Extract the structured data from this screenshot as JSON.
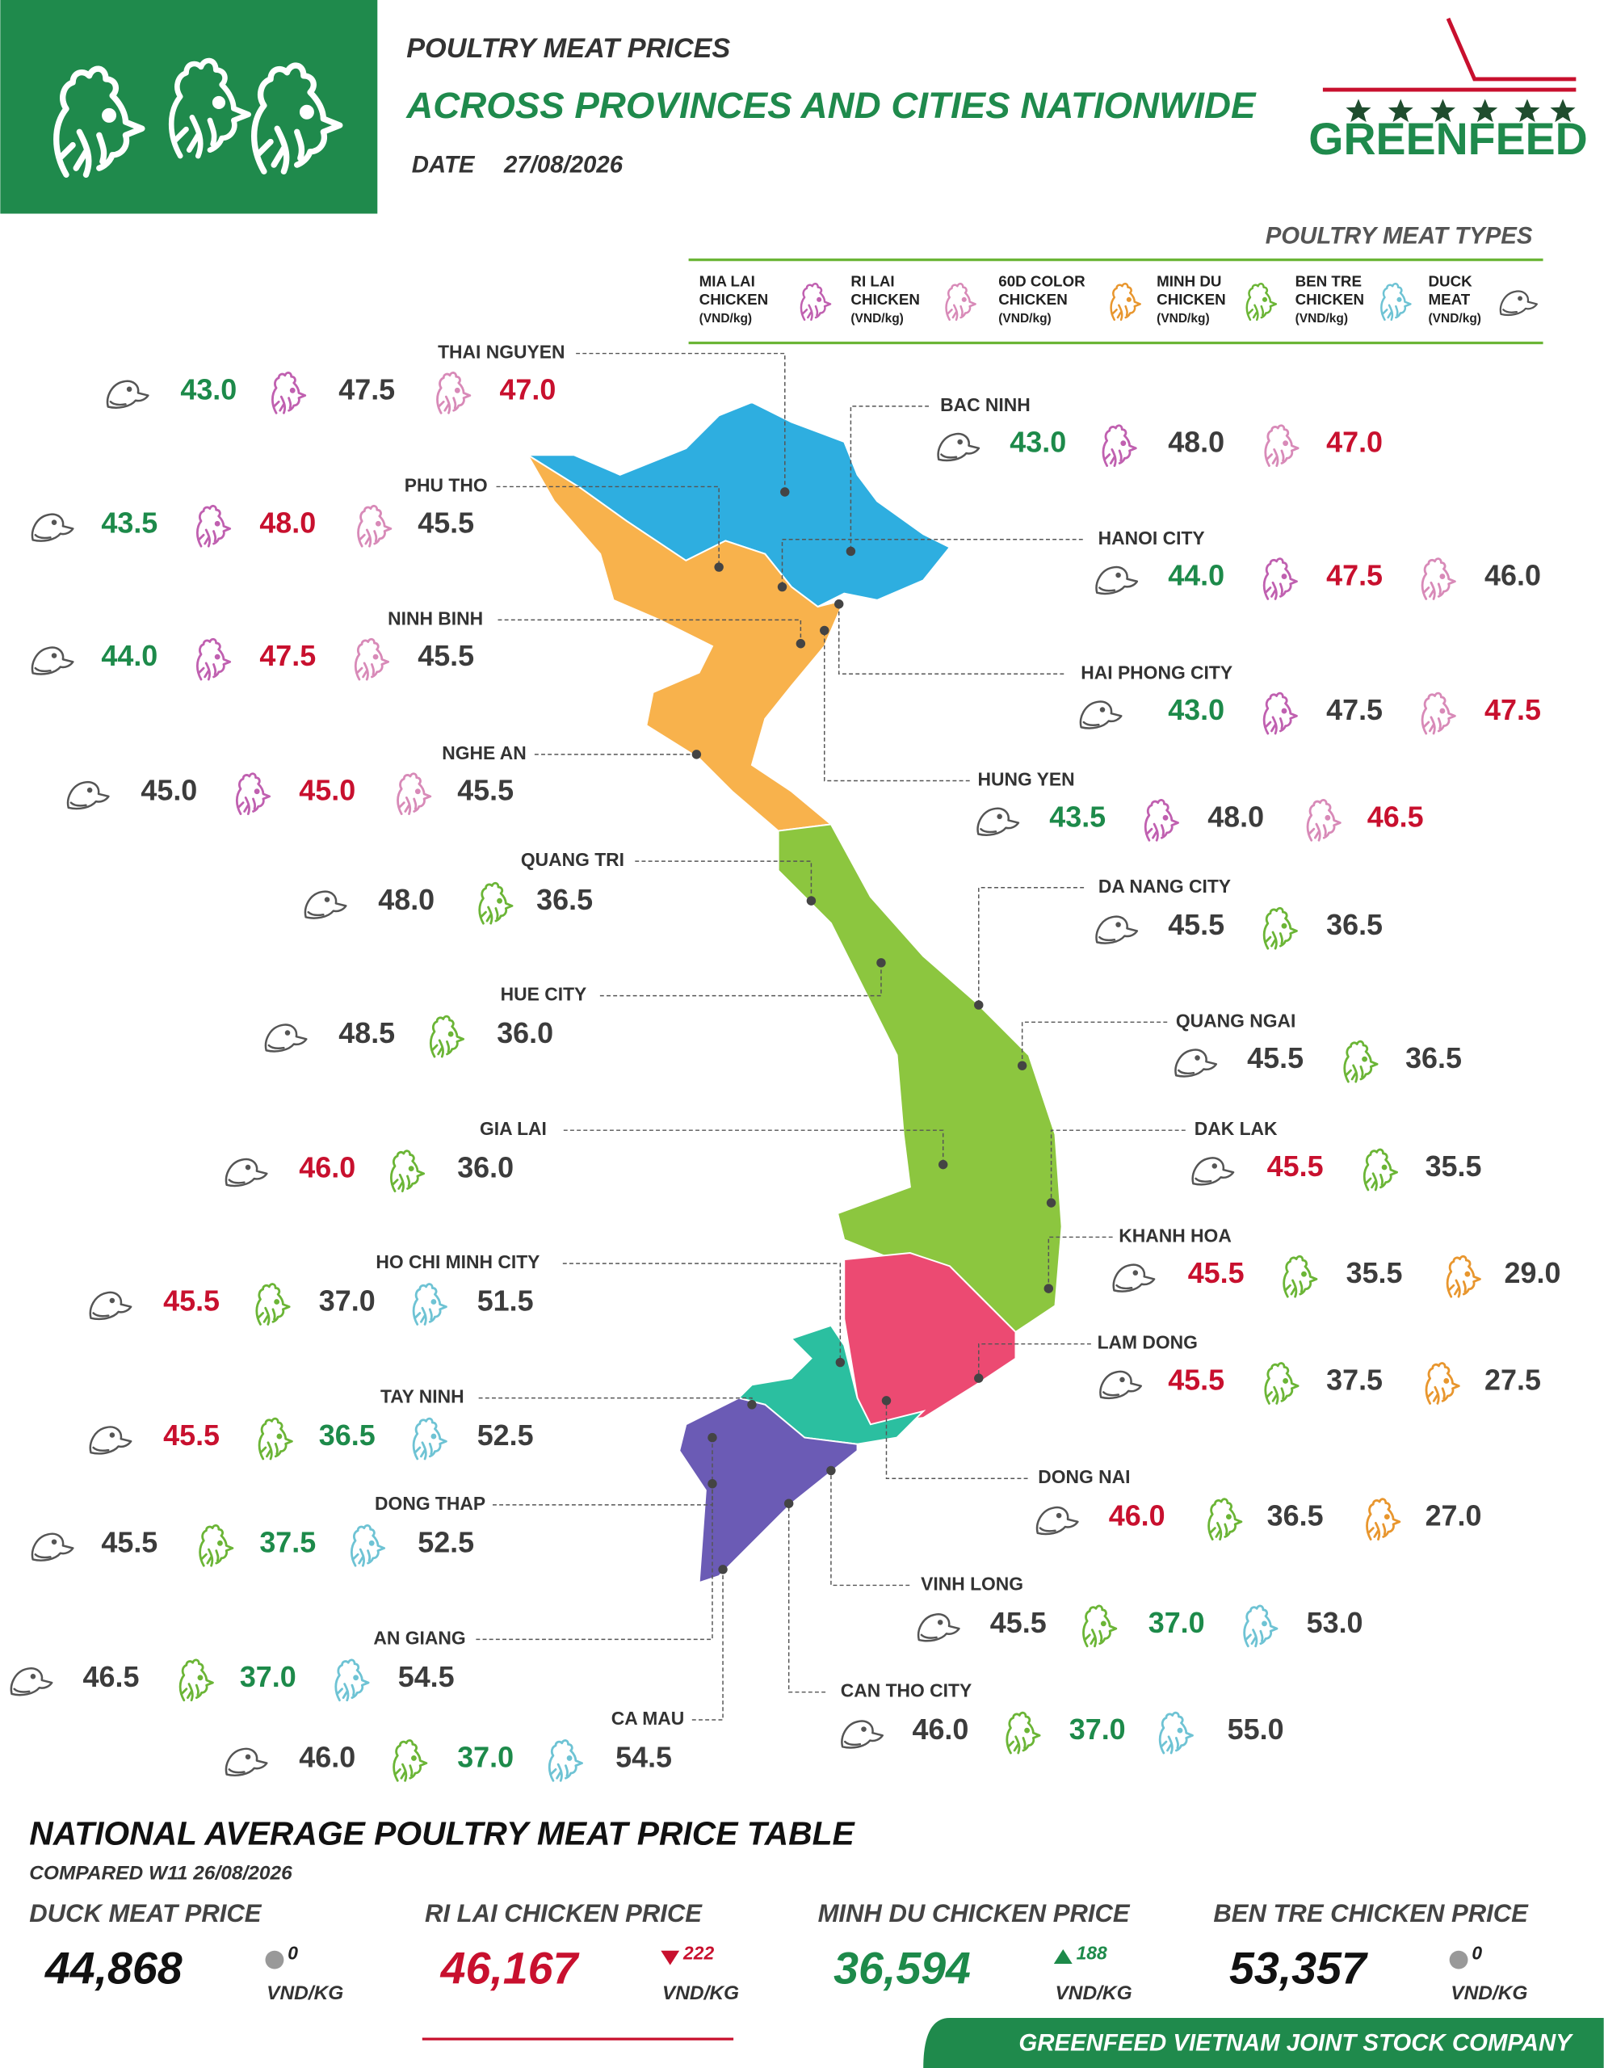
{
  "header": {
    "title": "POULTRY MEAT PRICES",
    "subtitle": "ACROSS PROVINCES AND CITIES NATIONWIDE",
    "date_label": "DATE",
    "date": "27/08/2026",
    "brand": "GREENFEED"
  },
  "legend": {
    "title": "POULTRY MEAT TYPES",
    "items": [
      {
        "lines": [
          "MIA LAI",
          "CHICKEN",
          "(VND/kg)"
        ],
        "color": "#c060b0"
      },
      {
        "lines": [
          "RI LAI",
          "CHICKEN",
          "(VND/kg)"
        ],
        "color": "#d88ab8"
      },
      {
        "lines": [
          "60D COLOR",
          "CHICKEN",
          "(VND/kg)"
        ],
        "color": "#e8962e"
      },
      {
        "lines": [
          "MINH DU",
          "CHICKEN",
          "(VND/kg)"
        ],
        "color": "#6bb536"
      },
      {
        "lines": [
          "BEN TRE",
          "CHICKEN",
          "(VND/kg)"
        ],
        "color": "#6ec3d4"
      },
      {
        "lines": [
          "DUCK",
          "MEAT",
          "(VND/kg)"
        ],
        "color": "#555555"
      }
    ]
  },
  "provinces": [
    {
      "name": "THAI NGUYEN",
      "prices": [
        {
          "value": "43.0",
          "color": "#1d8a4a"
        },
        {
          "value": "47.5",
          "color": "#3c3c3c"
        },
        {
          "value": "47.0",
          "color": "#c8102e"
        }
      ]
    },
    {
      "name": "BAC NINH",
      "prices": [
        {
          "value": "43.0",
          "color": "#1d8a4a"
        },
        {
          "value": "48.0",
          "color": "#3c3c3c"
        },
        {
          "value": "47.0",
          "color": "#c8102e"
        }
      ]
    },
    {
      "name": "PHU THO",
      "prices": [
        {
          "value": "43.5",
          "color": "#1d8a4a"
        },
        {
          "value": "48.0",
          "color": "#c8102e"
        },
        {
          "value": "45.5",
          "color": "#3c3c3c"
        }
      ]
    },
    {
      "name": "HANOI CITY",
      "prices": [
        {
          "value": "44.0",
          "color": "#1d8a4a"
        },
        {
          "value": "47.5",
          "color": "#c8102e"
        },
        {
          "value": "46.0",
          "color": "#3c3c3c"
        }
      ]
    },
    {
      "name": "NINH BINH",
      "prices": [
        {
          "value": "44.0",
          "color": "#1d8a4a"
        },
        {
          "value": "47.5",
          "color": "#c8102e"
        },
        {
          "value": "45.5",
          "color": "#3c3c3c"
        }
      ]
    },
    {
      "name": "HAI PHONG CITY",
      "prices": [
        {
          "value": "43.0",
          "color": "#1d8a4a"
        },
        {
          "value": "47.5",
          "color": "#3c3c3c"
        },
        {
          "value": "47.5",
          "color": "#c8102e"
        }
      ]
    },
    {
      "name": "NGHE AN",
      "prices": [
        {
          "value": "45.0",
          "color": "#3c3c3c"
        },
        {
          "value": "45.0",
          "color": "#c8102e"
        },
        {
          "value": "45.5",
          "color": "#3c3c3c"
        }
      ]
    },
    {
      "name": "HUNG YEN",
      "prices": [
        {
          "value": "43.5",
          "color": "#1d8a4a"
        },
        {
          "value": "48.0",
          "color": "#3c3c3c"
        },
        {
          "value": "46.5",
          "color": "#c8102e"
        }
      ]
    },
    {
      "name": "QUANG TRI",
      "prices": [
        {
          "value": "48.0",
          "color": "#3c3c3c"
        },
        {
          "value": "36.5",
          "color": "#3c3c3c"
        }
      ]
    },
    {
      "name": "DA NANG CITY",
      "prices": [
        {
          "value": "45.5",
          "color": "#3c3c3c"
        },
        {
          "value": "36.5",
          "color": "#3c3c3c"
        }
      ]
    },
    {
      "name": "HUE CITY",
      "prices": [
        {
          "value": "48.5",
          "color": "#3c3c3c"
        },
        {
          "value": "36.0",
          "color": "#3c3c3c"
        }
      ]
    },
    {
      "name": "QUANG NGAI",
      "prices": [
        {
          "value": "45.5",
          "color": "#3c3c3c"
        },
        {
          "value": "36.5",
          "color": "#3c3c3c"
        }
      ]
    },
    {
      "name": "GIA LAI",
      "prices": [
        {
          "value": "46.0",
          "color": "#c8102e"
        },
        {
          "value": "36.0",
          "color": "#3c3c3c"
        }
      ]
    },
    {
      "name": "DAK LAK",
      "prices": [
        {
          "value": "45.5",
          "color": "#c8102e"
        },
        {
          "value": "35.5",
          "color": "#3c3c3c"
        }
      ]
    },
    {
      "name": "HO CHI MINH CITY",
      "prices": [
        {
          "value": "45.5",
          "color": "#c8102e"
        },
        {
          "value": "37.0",
          "color": "#3c3c3c"
        },
        {
          "value": "51.5",
          "color": "#3c3c3c"
        }
      ]
    },
    {
      "name": "KHANH HOA",
      "prices": [
        {
          "value": "45.5",
          "color": "#c8102e"
        },
        {
          "value": "35.5",
          "color": "#3c3c3c"
        },
        {
          "value": "29.0",
          "color": "#3c3c3c"
        }
      ]
    },
    {
      "name": "TAY NINH",
      "prices": [
        {
          "value": "45.5",
          "color": "#c8102e"
        },
        {
          "value": "36.5",
          "color": "#1d8a4a"
        },
        {
          "value": "52.5",
          "color": "#3c3c3c"
        }
      ]
    },
    {
      "name": "LAM DONG",
      "prices": [
        {
          "value": "45.5",
          "color": "#c8102e"
        },
        {
          "value": "37.5",
          "color": "#3c3c3c"
        },
        {
          "value": "27.5",
          "color": "#3c3c3c"
        }
      ]
    },
    {
      "name": "DONG THAP",
      "prices": [
        {
          "value": "45.5",
          "color": "#3c3c3c"
        },
        {
          "value": "37.5",
          "color": "#1d8a4a"
        },
        {
          "value": "52.5",
          "color": "#3c3c3c"
        }
      ]
    },
    {
      "name": "DONG NAI",
      "prices": [
        {
          "value": "46.0",
          "color": "#c8102e"
        },
        {
          "value": "36.5",
          "color": "#3c3c3c"
        },
        {
          "value": "27.0",
          "color": "#3c3c3c"
        }
      ]
    },
    {
      "name": "VINH LONG",
      "prices": [
        {
          "value": "45.5",
          "color": "#3c3c3c"
        },
        {
          "value": "37.0",
          "color": "#1d8a4a"
        },
        {
          "value": "53.0",
          "color": "#3c3c3c"
        }
      ]
    },
    {
      "name": "AN GIANG",
      "prices": [
        {
          "value": "46.5",
          "color": "#3c3c3c"
        },
        {
          "value": "37.0",
          "color": "#1d8a4a"
        },
        {
          "value": "54.5",
          "color": "#3c3c3c"
        }
      ]
    },
    {
      "name": "CAN THO CITY",
      "prices": [
        {
          "value": "46.0",
          "color": "#3c3c3c"
        },
        {
          "value": "37.0",
          "color": "#1d8a4a"
        },
        {
          "value": "55.0",
          "color": "#3c3c3c"
        }
      ]
    },
    {
      "name": "CA MAU",
      "prices": [
        {
          "value": "46.0",
          "color": "#3c3c3c"
        },
        {
          "value": "37.0",
          "color": "#1d8a4a"
        },
        {
          "value": "54.5",
          "color": "#3c3c3c"
        }
      ]
    }
  ],
  "summary": {
    "title": "NATIONAL AVERAGE POULTRY MEAT PRICE TABLE",
    "compared": "COMPARED W11 26/08/2026",
    "cards": [
      {
        "label": "DUCK MEAT PRICE",
        "price": "44,868",
        "price_color": "#111111",
        "change": "0",
        "trend": "flat",
        "change_color": "#999999",
        "unit": "VND/KG"
      },
      {
        "label": "RI LAI CHICKEN PRICE",
        "price": "46,167",
        "price_color": "#c8102e",
        "change": "222",
        "trend": "down",
        "change_color": "#c8102e",
        "unit": "VND/KG"
      },
      {
        "label": "MINH DU CHICKEN PRICE",
        "price": "36,594",
        "price_color": "#1d8a4a",
        "change": "188",
        "trend": "up",
        "change_color": "#1d8a4a",
        "unit": "VND/KG"
      },
      {
        "label": "BEN TRE CHICKEN PRICE",
        "price": "53,357",
        "price_color": "#111111",
        "change": "0",
        "trend": "flat",
        "change_color": "#999999",
        "unit": "VND/KG"
      }
    ]
  },
  "footer": {
    "company": "GREENFEED VIETNAM JOINT STOCK COMPANY"
  }
}
